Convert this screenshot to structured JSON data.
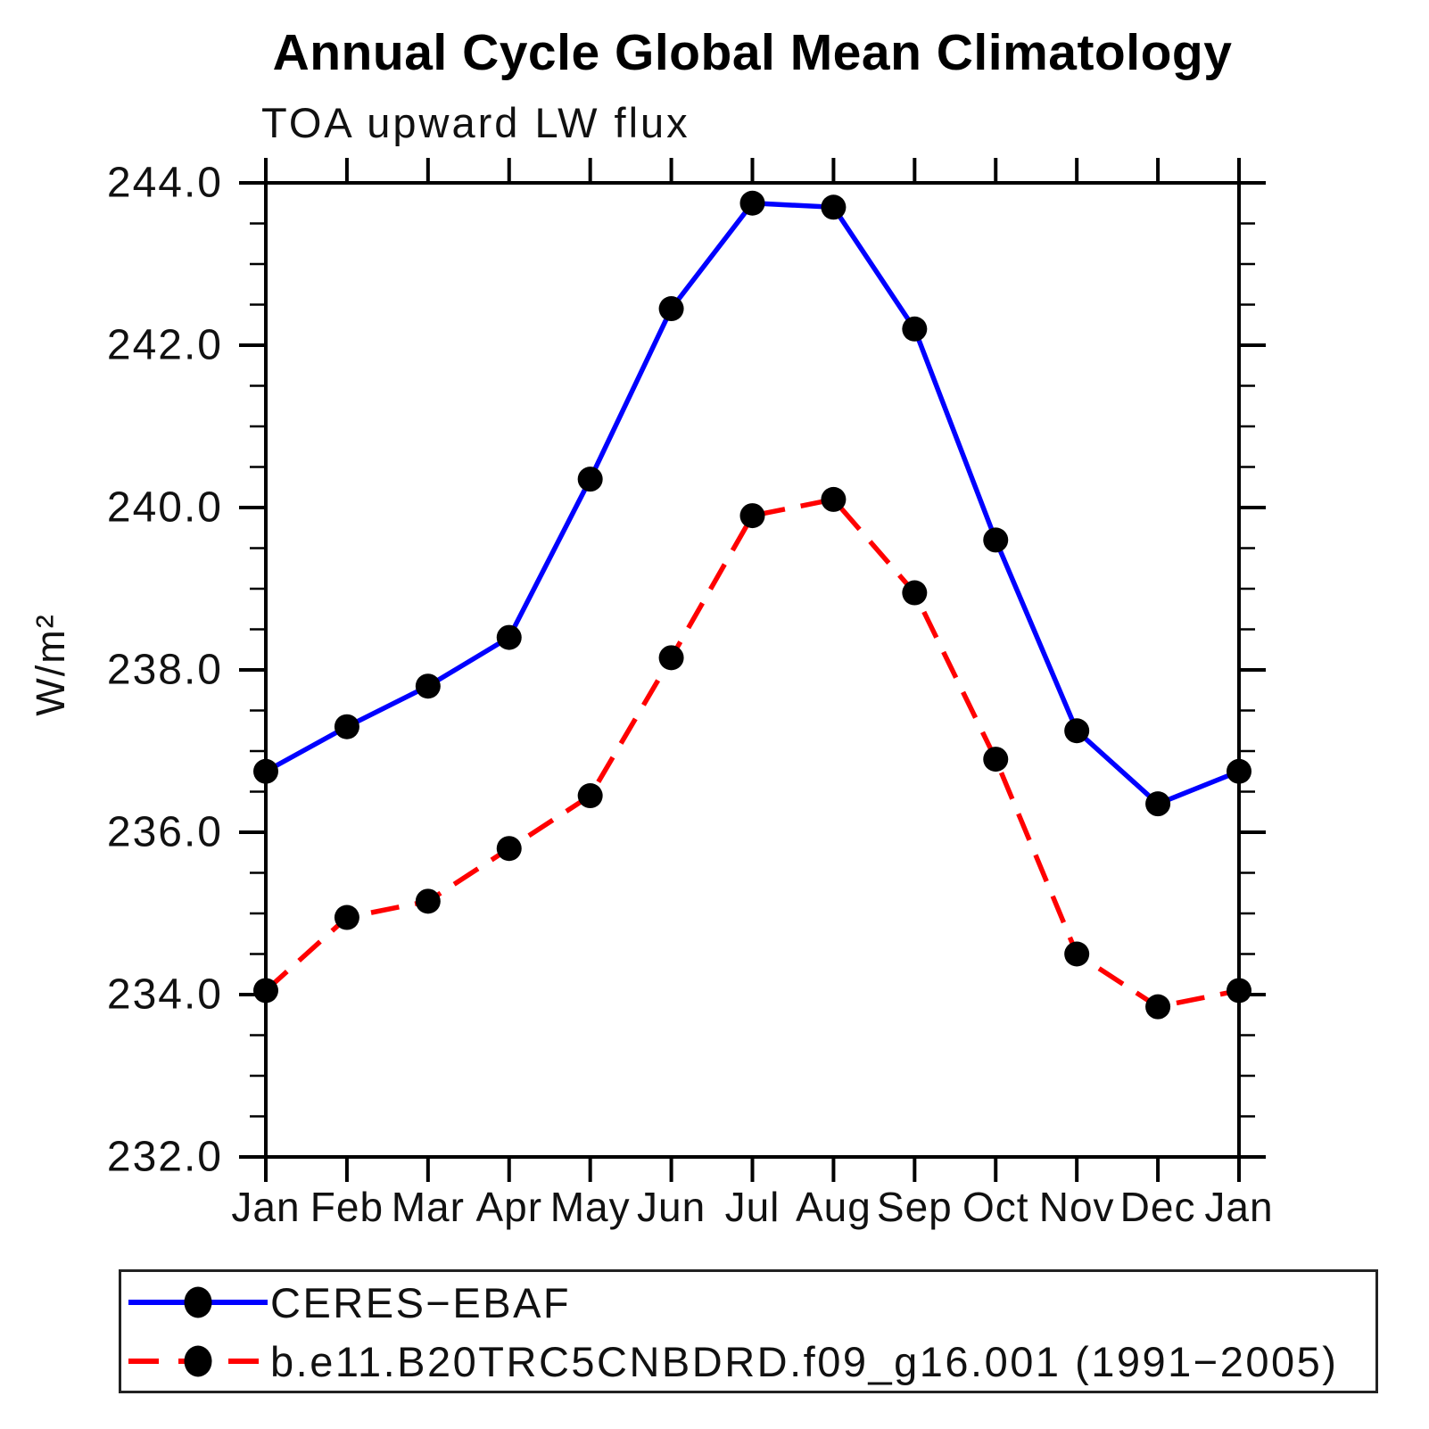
{
  "title": "Annual Cycle Global Mean Climatology",
  "subtitle": "TOA upward LW flux",
  "y_axis_title": "W/m²",
  "legend": {
    "entries": [
      {
        "label": "CERES−EBAF",
        "color": "#0000ff",
        "style": "solid"
      },
      {
        "label": "b.e11.B20TRC5CNBDRD.f09_g16.001 (1991−2005)",
        "color": "#ff0000",
        "style": "dashed"
      }
    ]
  },
  "chart_data": {
    "type": "line",
    "title": "Annual Cycle Global Mean Climatology",
    "subtitle": "TOA upward LW flux",
    "xlabel": "",
    "ylabel": "W/m²",
    "categories": [
      "Jan",
      "Feb",
      "Mar",
      "Apr",
      "May",
      "Jun",
      "Jul",
      "Aug",
      "Sep",
      "Oct",
      "Nov",
      "Dec",
      "Jan"
    ],
    "series": [
      {
        "name": "CERES−EBAF",
        "color": "#0000ff",
        "line_style": "solid",
        "marker": "circle",
        "marker_color": "#000000",
        "values": [
          236.75,
          237.3,
          237.8,
          238.4,
          240.35,
          242.45,
          243.75,
          243.7,
          242.2,
          239.6,
          237.25,
          236.35,
          236.75
        ]
      },
      {
        "name": "b.e11.B20TRC5CNBDRD.f09_g16.001 (1991−2005)",
        "color": "#ff0000",
        "line_style": "dashed",
        "marker": "circle",
        "marker_color": "#000000",
        "values": [
          234.05,
          234.95,
          235.15,
          235.8,
          236.45,
          238.15,
          239.9,
          240.1,
          238.95,
          236.9,
          234.5,
          233.85,
          234.05
        ]
      }
    ],
    "ylim": [
      232.0,
      244.0
    ],
    "yticks": [
      {
        "value": 244.0,
        "label": "244.0"
      },
      {
        "value": 242.0,
        "label": "242.0"
      },
      {
        "value": 240.0,
        "label": "240.0"
      },
      {
        "value": 238.0,
        "label": "238.0"
      },
      {
        "value": 236.0,
        "label": "236.0"
      },
      {
        "value": 234.0,
        "label": "234.0"
      },
      {
        "value": 232.0,
        "label": "232.0"
      }
    ],
    "yminor_step": 0.5,
    "grid": false,
    "legend_position": "bottom",
    "axis_color": "#000000"
  }
}
